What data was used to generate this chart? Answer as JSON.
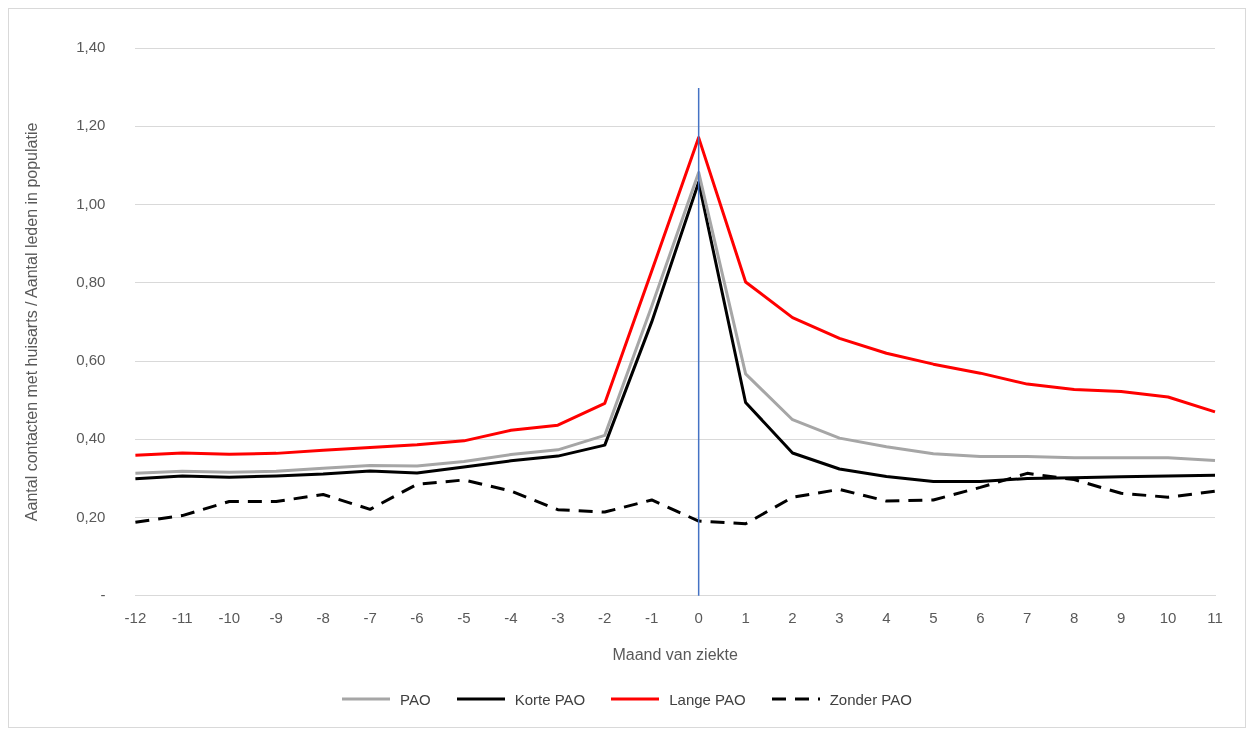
{
  "chart_data": {
    "type": "line",
    "xlabel": "Maand van ziekte",
    "ylabel": "Aantal contacten met huisarts / Aantal leden in populatie",
    "categories": [
      "-12",
      "-11",
      "-10",
      "-9",
      "-8",
      "-7",
      "-6",
      "-5",
      "-4",
      "-3",
      "-2",
      "-1",
      "0",
      "1",
      "2",
      "3",
      "4",
      "5",
      "6",
      "7",
      "8",
      "9",
      "10",
      "11"
    ],
    "series": [
      {
        "name": "PAO",
        "color": "#a6a6a6",
        "values": [
          0.313,
          0.318,
          0.316,
          0.318,
          0.326,
          0.333,
          0.332,
          0.343,
          0.361,
          0.373,
          0.41,
          0.74,
          1.082,
          0.567,
          0.45,
          0.403,
          0.381,
          0.363,
          0.356,
          0.356,
          0.353,
          0.353,
          0.353,
          0.346
        ]
      },
      {
        "name": "Korte PAO",
        "color": "#000000",
        "values": [
          0.299,
          0.306,
          0.303,
          0.306,
          0.311,
          0.319,
          0.314,
          0.329,
          0.345,
          0.357,
          0.385,
          0.7,
          1.057,
          0.494,
          0.365,
          0.324,
          0.305,
          0.292,
          0.292,
          0.3,
          0.302,
          0.304,
          0.306,
          0.308
        ]
      },
      {
        "name": "Lange PAO",
        "color": "#ff0000",
        "values": [
          0.359,
          0.365,
          0.362,
          0.364,
          0.372,
          0.379,
          0.386,
          0.396,
          0.423,
          0.436,
          0.492,
          0.83,
          1.171,
          0.802,
          0.711,
          0.658,
          0.62,
          0.592,
          0.569,
          0.541,
          0.527,
          0.522,
          0.508,
          0.47
        ]
      },
      {
        "name": "Zonder PAO",
        "color": "#000000",
        "line_style": "dashed",
        "values": [
          0.188,
          0.205,
          0.241,
          0.241,
          0.259,
          0.221,
          0.285,
          0.296,
          0.268,
          0.22,
          0.214,
          0.245,
          0.191,
          0.184,
          0.252,
          0.272,
          0.242,
          0.245,
          0.277,
          0.313,
          0.297,
          0.262,
          0.252,
          0.267
        ]
      }
    ],
    "ylim": [
      0,
      1.4
    ],
    "yticks": [
      {
        "value": 0,
        "label": "-"
      },
      {
        "value": 0.2,
        "label": "0,20"
      },
      {
        "value": 0.4,
        "label": "0,40"
      },
      {
        "value": 0.6,
        "label": "0,60"
      },
      {
        "value": 0.8,
        "label": "0,80"
      },
      {
        "value": 1,
        "label": "1,00"
      },
      {
        "value": 1.2,
        "label": "1,20"
      },
      {
        "value": 1.4,
        "label": "1,40"
      }
    ],
    "ref_lines": [
      {
        "axis": "x",
        "value": "0",
        "color": "#4472c4"
      }
    ],
    "grid": "y",
    "legend": "bottom",
    "marker": "none"
  }
}
